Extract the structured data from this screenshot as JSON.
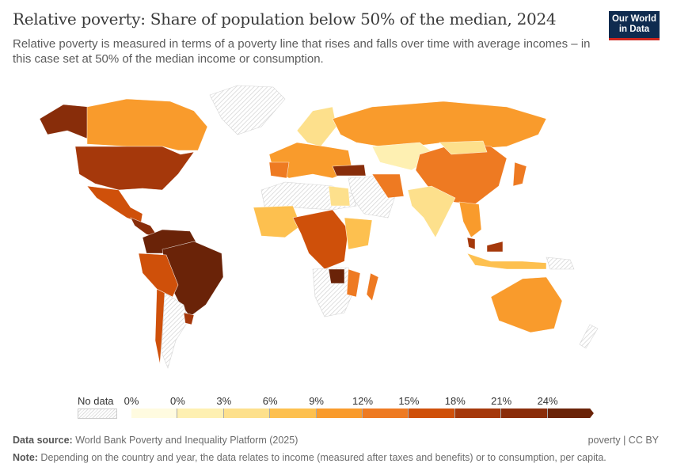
{
  "header": {
    "title": "Relative poverty: Share of population below 50% of the median, 2024",
    "subtitle": "Relative poverty is measured in terms of a poverty line that rises and falls over time with average incomes – in this case set at 50% of the median income or consumption.",
    "logo_line1": "Our World",
    "logo_line2": "in Data"
  },
  "legend": {
    "no_data_label": "No data",
    "ticks": [
      "0%",
      "0%",
      "3%",
      "6%",
      "9%",
      "12%",
      "15%",
      "18%",
      "21%",
      "24%"
    ],
    "colors": [
      "#fffbe0",
      "#fef0b2",
      "#fde08c",
      "#fdc04f",
      "#f99b2c",
      "#ee7a22",
      "#cf500a",
      "#a5380b",
      "#8a2d0a",
      "#6a2308"
    ],
    "no_data_color": "#e8e8e8"
  },
  "footer": {
    "source_label": "Data source:",
    "source_text": " World Bank Poverty and Inequality Platform (2025)",
    "license": "poverty | CC BY",
    "note_label": "Note:",
    "note_text": " Depending on the country and year, the data relates to income (measured after taxes and benefits) or to consumption, per capita."
  }
}
